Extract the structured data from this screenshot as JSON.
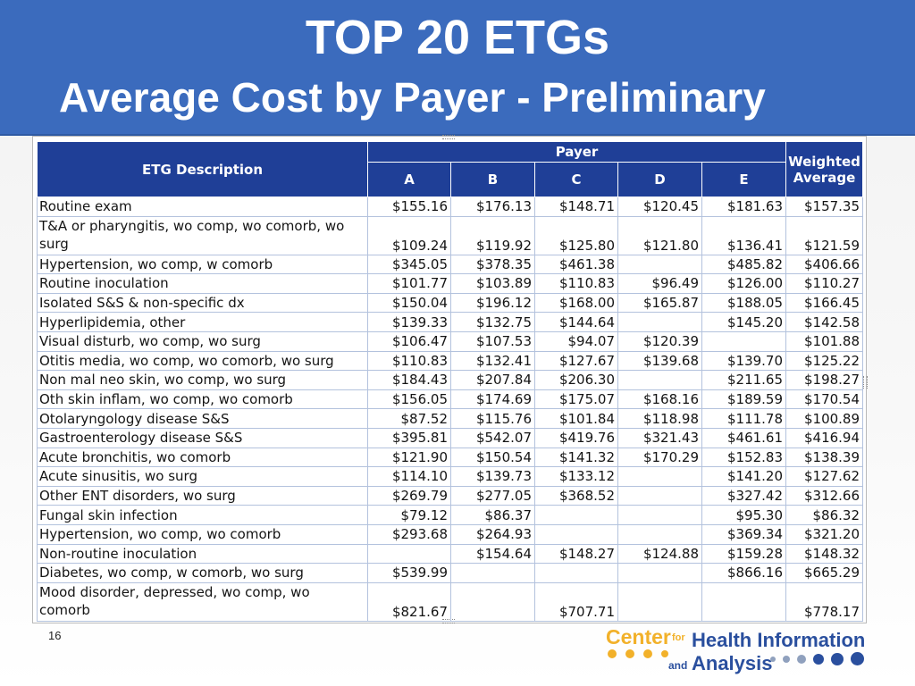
{
  "slide": {
    "title_line1": "TOP 20 ETGs",
    "title_line2": "Average Cost by Payer  - Preliminary",
    "page_number": "16"
  },
  "logo": {
    "word1": "Center",
    "word_for": "for",
    "word2": "Health Information",
    "word_and": "and",
    "word3": "Analysis",
    "colors": {
      "gold": "#f2b12a",
      "blue": "#2a4f9e",
      "grey": "#8fa0bd"
    }
  },
  "table": {
    "header": {
      "description": "ETG Description",
      "payer_group": "Payer",
      "payers": [
        "A",
        "B",
        "C",
        "D",
        "E"
      ],
      "weighted_average": "Weighted Average"
    },
    "rows": [
      {
        "description": "Routine exam",
        "values": [
          "$155.16",
          "$176.13",
          "$148.71",
          "$120.45",
          "$181.63",
          "$157.35"
        ]
      },
      {
        "description": "T&A or pharyngitis, wo comp, wo comorb, wo surg",
        "values": [
          "$109.24",
          "$119.92",
          "$125.80",
          "$121.80",
          "$136.41",
          "$121.59"
        ],
        "tall": true
      },
      {
        "description": "Hypertension, wo comp, w comorb",
        "values": [
          "$345.05",
          "$378.35",
          "$461.38",
          "",
          "$485.82",
          "$406.66"
        ]
      },
      {
        "description": "Routine inoculation",
        "values": [
          "$101.77",
          "$103.89",
          "$110.83",
          "$96.49",
          "$126.00",
          "$110.27"
        ]
      },
      {
        "description": "Isolated S&S & non-specific dx",
        "values": [
          "$150.04",
          "$196.12",
          "$168.00",
          "$165.87",
          "$188.05",
          "$166.45"
        ]
      },
      {
        "description": "Hyperlipidemia, other",
        "values": [
          "$139.33",
          "$132.75",
          "$144.64",
          "",
          "$145.20",
          "$142.58"
        ]
      },
      {
        "description": "Visual disturb, wo comp, wo surg",
        "values": [
          "$106.47",
          "$107.53",
          "$94.07",
          "$120.39",
          "",
          "$101.88"
        ]
      },
      {
        "description": "Otitis media, wo comp, wo comorb, wo surg",
        "values": [
          "$110.83",
          "$132.41",
          "$127.67",
          "$139.68",
          "$139.70",
          "$125.22"
        ]
      },
      {
        "description": "Non mal neo skin, wo comp, wo surg",
        "values": [
          "$184.43",
          "$207.84",
          "$206.30",
          "",
          "$211.65",
          "$198.27"
        ]
      },
      {
        "description": "Oth skin inflam, wo comp, wo comorb",
        "values": [
          "$156.05",
          "$174.69",
          "$175.07",
          "$168.16",
          "$189.59",
          "$170.54"
        ]
      },
      {
        "description": "Otolaryngology disease S&S",
        "values": [
          "$87.52",
          "$115.76",
          "$101.84",
          "$118.98",
          "$111.78",
          "$100.89"
        ]
      },
      {
        "description": "Gastroenterology disease S&S",
        "values": [
          "$395.81",
          "$542.07",
          "$419.76",
          "$321.43",
          "$461.61",
          "$416.94"
        ]
      },
      {
        "description": "Acute bronchitis, wo comorb",
        "values": [
          "$121.90",
          "$150.54",
          "$141.32",
          "$170.29",
          "$152.83",
          "$138.39"
        ]
      },
      {
        "description": "Acute sinusitis, wo surg",
        "values": [
          "$114.10",
          "$139.73",
          "$133.12",
          "",
          "$141.20",
          "$127.62"
        ]
      },
      {
        "description": "Other ENT disorders, wo surg",
        "values": [
          "$269.79",
          "$277.05",
          "$368.52",
          "",
          "$327.42",
          "$312.66"
        ]
      },
      {
        "description": "Fungal skin infection",
        "values": [
          "$79.12",
          "$86.37",
          "",
          "",
          "$95.30",
          "$86.32"
        ]
      },
      {
        "description": "Hypertension, wo comp, wo comorb",
        "values": [
          "$293.68",
          "$264.93",
          "",
          "",
          "$369.34",
          "$321.20"
        ]
      },
      {
        "description": "Non-routine inoculation",
        "values": [
          "",
          "$154.64",
          "$148.27",
          "$124.88",
          "$159.28",
          "$148.32"
        ]
      },
      {
        "description": "Diabetes, wo comp, w comorb, wo surg",
        "values": [
          "$539.99",
          "",
          "",
          "",
          "$866.16",
          "$665.29"
        ]
      },
      {
        "description": "Mood disorder, depressed, wo comp, wo comorb",
        "values": [
          "$821.67",
          "",
          "$707.71",
          "",
          "",
          "$778.17"
        ],
        "tall": true
      }
    ]
  },
  "colors": {
    "banner": "#3b6bbd",
    "table_header": "#1f3f97",
    "grid": "#b3c2dd"
  }
}
